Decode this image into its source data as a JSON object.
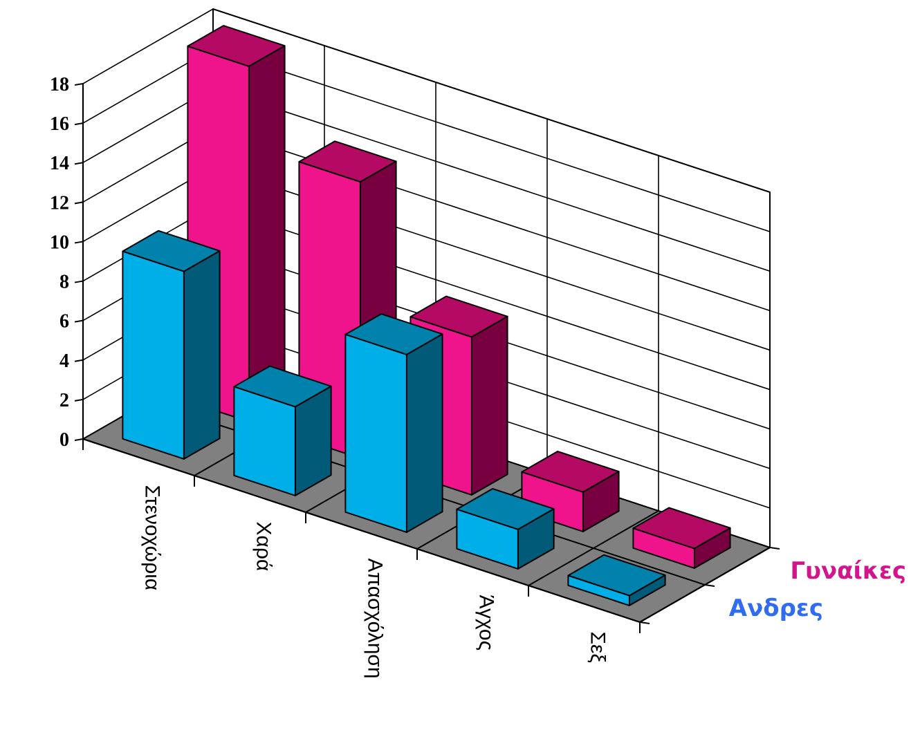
{
  "chart_data": {
    "type": "bar",
    "style": "3d-clustered-depth",
    "categories": [
      "Στενοχώρια",
      "Χαρά",
      "Απασχόληση",
      "Άγχος",
      "Σεξ"
    ],
    "series": [
      {
        "name": "Ανδρες",
        "values": [
          9.5,
          4.5,
          9,
          2,
          0.5
        ]
      },
      {
        "name": "Γυναίκες",
        "values": [
          18,
          14,
          8,
          2,
          1
        ]
      }
    ],
    "ylim": [
      0,
      18
    ],
    "yticks": [
      0,
      2,
      4,
      6,
      8,
      10,
      12,
      14,
      16,
      18
    ],
    "grid": true,
    "legend": "right",
    "title": "",
    "xlabel": "",
    "ylabel": ""
  },
  "colors": {
    "series_front": [
      "#00aee8",
      "#f0148c"
    ],
    "series_side": [
      "#005a78",
      "#780040"
    ],
    "series_top": [
      "#0082ac",
      "#b40a64"
    ],
    "series_label": [
      "#2f6cf0",
      "#d4148c"
    ],
    "floor": "#808080",
    "grid": "#000000"
  }
}
